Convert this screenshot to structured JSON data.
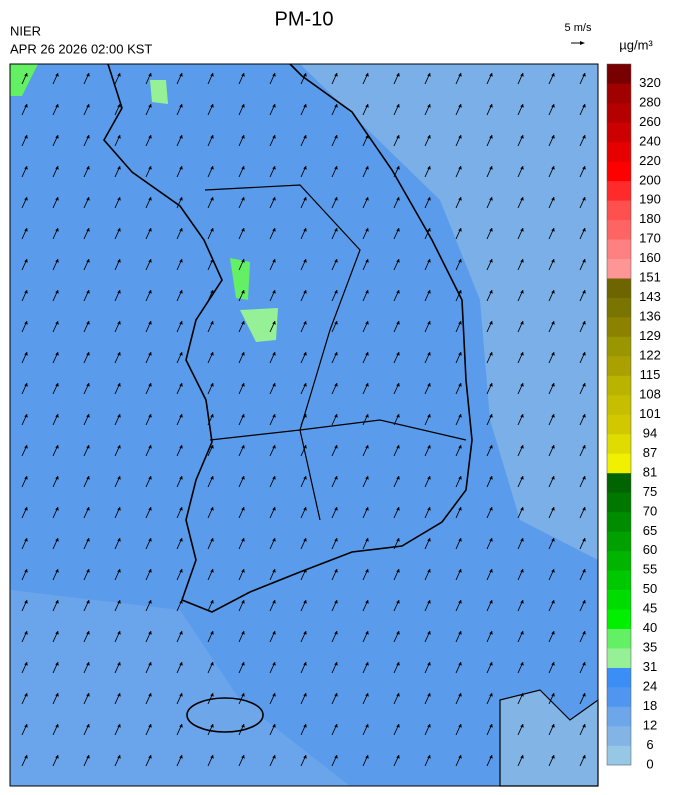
{
  "header": {
    "title": "PM-10",
    "agency": "NIER",
    "datetime": "APR 26 2026 02:00 KST",
    "wind_scale": "5 m/s"
  },
  "colorbar": {
    "unit": "µg/m³",
    "levels": [
      0,
      6,
      12,
      18,
      24,
      31,
      35,
      40,
      45,
      50,
      55,
      60,
      65,
      70,
      75,
      81,
      87,
      94,
      101,
      108,
      115,
      122,
      129,
      136,
      143,
      151,
      160,
      170,
      180,
      190,
      200,
      220,
      240,
      260,
      280,
      320
    ],
    "colors": [
      "#96c8e6",
      "#82b4e6",
      "#6ea6ea",
      "#5096f0",
      "#3a8ef6",
      "#96f096",
      "#64f064",
      "#00f000",
      "#00dc00",
      "#00c800",
      "#00b400",
      "#00a000",
      "#008c00",
      "#007800",
      "#006400",
      "#f0f000",
      "#e0dc00",
      "#d2c800",
      "#c8be00",
      "#bab400",
      "#aaa000",
      "#9a9600",
      "#8c8200",
      "#7a7400",
      "#6e6400",
      "#ff9696",
      "#ff8080",
      "#ff6464",
      "#ff5050",
      "#ff2a2a",
      "#ff0000",
      "#e60000",
      "#cc0000",
      "#b40000",
      "#a00000",
      "#780000"
    ]
  }
}
